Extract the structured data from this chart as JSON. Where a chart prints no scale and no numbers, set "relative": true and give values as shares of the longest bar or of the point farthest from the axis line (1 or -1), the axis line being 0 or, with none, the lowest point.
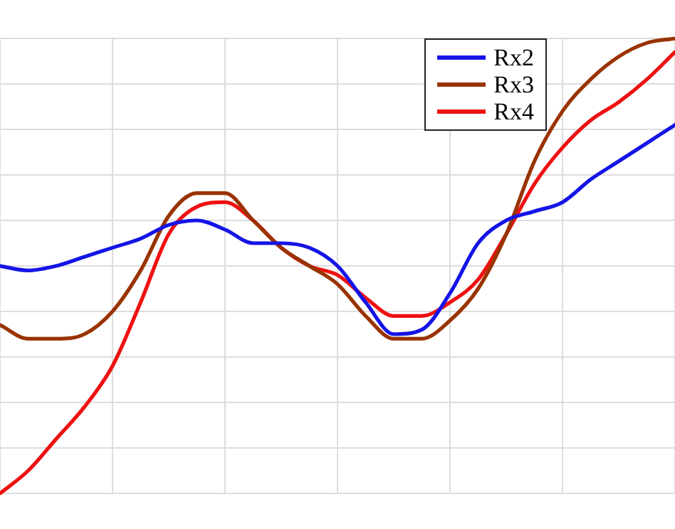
{
  "chart_data": {
    "type": "line",
    "relative": true,
    "grid": true,
    "legend": "top right",
    "marker": "none",
    "line_style": "solid",
    "categories": [
      null,
      null,
      null,
      null,
      null,
      null,
      null,
      null,
      null,
      null,
      null,
      null,
      null,
      null,
      null,
      null,
      null,
      null,
      null,
      null,
      null,
      null,
      null,
      null,
      null
    ],
    "series": [
      {
        "name": "Rx2",
        "color": "#1414e6",
        "values": [
          0.5,
          0.49,
          0.5,
          0.52,
          0.54,
          0.56,
          0.59,
          0.6,
          0.58,
          0.55,
          0.55,
          0.54,
          0.5,
          0.42,
          0.35,
          0.36,
          0.44,
          0.55,
          0.6,
          0.62,
          0.64,
          0.69,
          0.73,
          0.77,
          0.81
        ]
      },
      {
        "name": "Rx3",
        "color": "#993300",
        "values": [
          0.37,
          0.34,
          0.34,
          0.35,
          0.4,
          0.49,
          0.61,
          0.66,
          0.66,
          0.6,
          0.54,
          0.5,
          0.46,
          0.39,
          0.34,
          0.34,
          0.38,
          0.45,
          0.57,
          0.73,
          0.84,
          0.91,
          0.96,
          0.99,
          1.0
        ]
      },
      {
        "name": "Rx4",
        "color": "#ee1111",
        "values": [
          0,
          0.05,
          0.12,
          0.19,
          0.28,
          0.42,
          0.57,
          0.63,
          0.64,
          0.6,
          0.54,
          0.5,
          0.48,
          0.43,
          0.39,
          0.39,
          0.42,
          0.47,
          0.57,
          0.68,
          0.76,
          0.82,
          0.86,
          0.91,
          0.97
        ]
      }
    ]
  }
}
